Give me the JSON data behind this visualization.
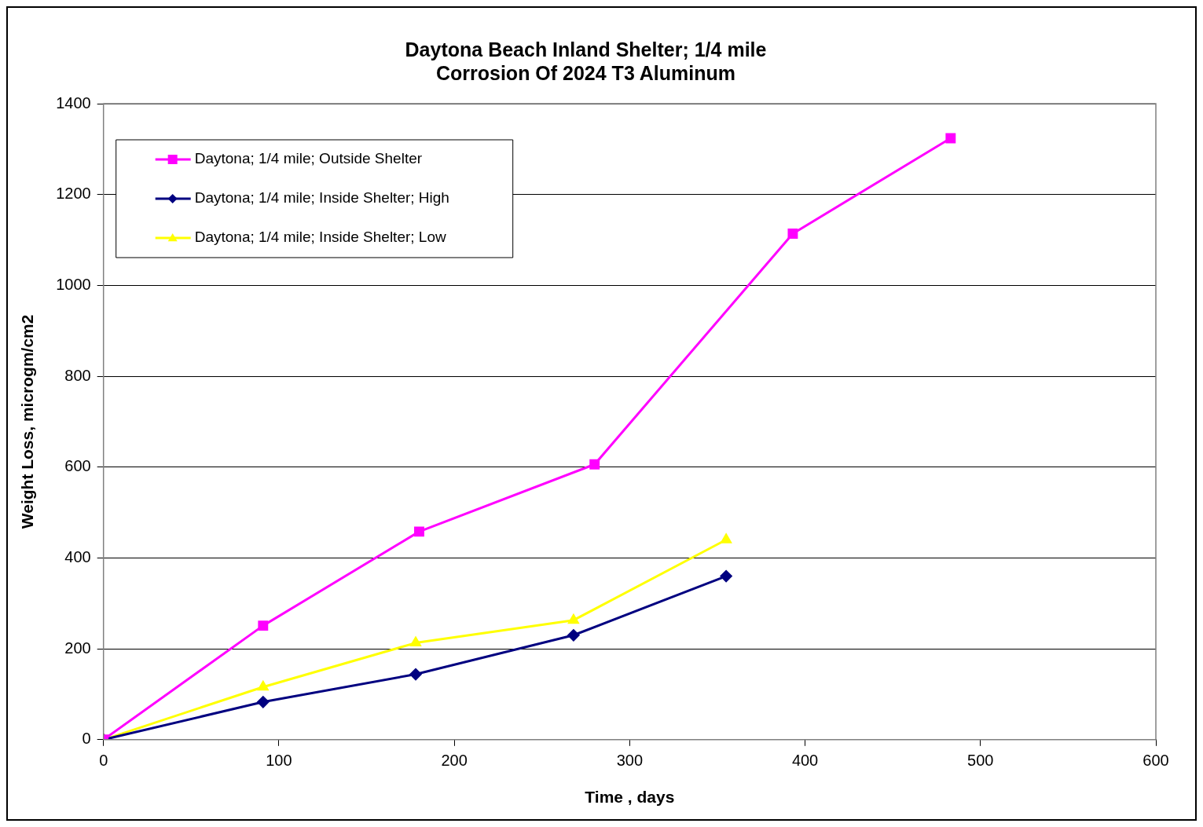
{
  "chart_data": {
    "type": "line",
    "title": "Daytona Beach Inland Shelter; 1/4 mile\nCorrosion Of 2024 T3 Aluminum",
    "xlabel": "Time , days",
    "ylabel": "Weight Loss, microgm/cm2",
    "xlim": [
      0,
      600
    ],
    "xticks": [
      0,
      100,
      200,
      300,
      400,
      500,
      600
    ],
    "ylim": [
      0,
      1400
    ],
    "yticks": [
      0,
      200,
      400,
      600,
      800,
      1000,
      1200,
      1400
    ],
    "grid": "y",
    "legend": "top left",
    "line_style": "solid",
    "series": [
      {
        "name": "Daytona; 1/4 mile; Outside Shelter",
        "color": "#ff00ff",
        "marker": "square",
        "x": [
          0,
          91,
          180,
          280,
          393,
          483
        ],
        "values": [
          0,
          251,
          458,
          606,
          1114,
          1324
        ]
      },
      {
        "name": "Daytona; 1/4 mile; Inside Shelter; High",
        "color": "#000080",
        "marker": "diamond",
        "x": [
          0,
          91,
          178,
          268,
          355
        ],
        "values": [
          0,
          83,
          144,
          230,
          360
        ]
      },
      {
        "name": "Daytona; 1/4 mile; Inside Shelter; Low",
        "color": "#ffff00",
        "marker": "triangle",
        "x": [
          0,
          91,
          178,
          268,
          355
        ],
        "values": [
          0,
          116,
          213,
          263,
          440
        ]
      }
    ]
  }
}
